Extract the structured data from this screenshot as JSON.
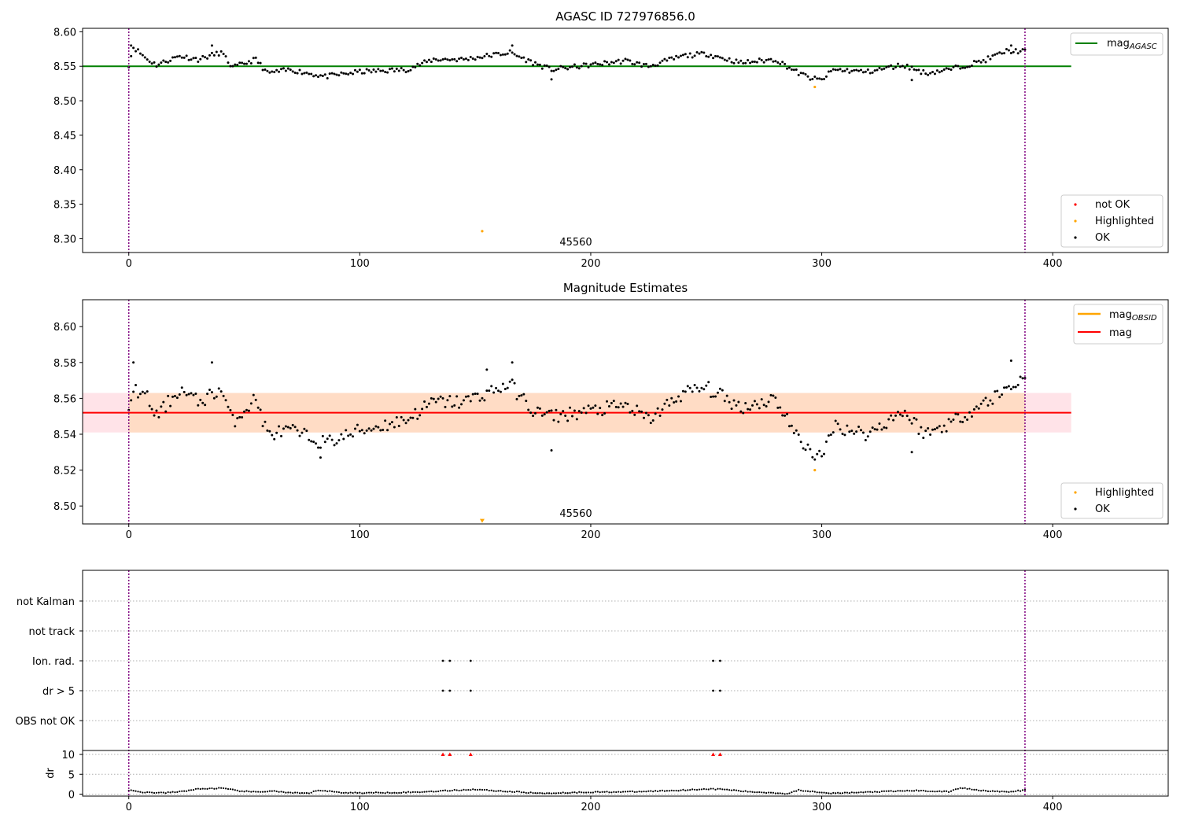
{
  "figure": {
    "obs_marker_label": "45560",
    "obs_marker_x": 193
  },
  "chart_data": [
    {
      "type": "scatter",
      "title": "AGASC ID 727976856.0",
      "xlim": [
        -20,
        450
      ],
      "ylim": [
        8.28,
        8.605
      ],
      "x_ticks": [
        0,
        100,
        200,
        300,
        400
      ],
      "y_ticks": [
        "8.60",
        "8.55",
        "8.50",
        "8.45",
        "8.40",
        "8.35",
        "8.30"
      ],
      "vlines": [
        0,
        388
      ],
      "hline": {
        "label": "mag_AGASC",
        "value": 8.55,
        "x_range": [
          -20,
          408
        ],
        "color": "#008000"
      },
      "legend_top": [
        {
          "label": "mag",
          "sub": "AGASC",
          "color": "#008000"
        }
      ],
      "legend_bottom": [
        {
          "label": "not OK",
          "color": "#ff0000"
        },
        {
          "label": "Highlighted",
          "color": "#ffa500"
        },
        {
          "label": "OK",
          "color": "#000000"
        }
      ],
      "highlighted_points": [
        [
          297,
          8.52
        ],
        [
          153,
          8.311
        ]
      ],
      "series": [
        {
          "name": "OK",
          "color": "#000000",
          "x_start": 0,
          "x_end": 388,
          "count": 389,
          "anchors": [
            [
              0,
              8.552
            ],
            [
              2,
              8.578
            ],
            [
              8,
              8.56
            ],
            [
              12,
              8.552
            ],
            [
              22,
              8.565
            ],
            [
              30,
              8.56
            ],
            [
              40,
              8.57
            ],
            [
              45,
              8.548
            ],
            [
              55,
              8.56
            ],
            [
              60,
              8.54
            ],
            [
              70,
              8.545
            ],
            [
              85,
              8.535
            ],
            [
              100,
              8.542
            ],
            [
              120,
              8.545
            ],
            [
              132,
              8.56
            ],
            [
              145,
              8.56
            ],
            [
              155,
              8.565
            ],
            [
              165,
              8.57
            ],
            [
              175,
              8.555
            ],
            [
              183,
              8.545
            ],
            [
              200,
              8.552
            ],
            [
              215,
              8.558
            ],
            [
              225,
              8.55
            ],
            [
              240,
              8.565
            ],
            [
              250,
              8.568
            ],
            [
              265,
              8.555
            ],
            [
              280,
              8.56
            ],
            [
              290,
              8.54
            ],
            [
              296,
              8.532
            ],
            [
              300,
              8.53
            ],
            [
              305,
              8.545
            ],
            [
              320,
              8.542
            ],
            [
              335,
              8.552
            ],
            [
              345,
              8.54
            ],
            [
              355,
              8.545
            ],
            [
              370,
              8.558
            ],
            [
              380,
              8.572
            ],
            [
              388,
              8.572
            ]
          ],
          "outliers": [
            [
              1,
              8.58
            ],
            [
              36,
              8.58
            ],
            [
              183,
              8.531
            ],
            [
              339,
              8.53
            ],
            [
              166,
              8.58
            ],
            [
              382,
              8.58
            ]
          ]
        }
      ]
    },
    {
      "type": "scatter",
      "title": "Magnitude Estimates",
      "xlim": [
        -20,
        450
      ],
      "ylim": [
        8.49,
        8.615
      ],
      "x_ticks": [
        0,
        100,
        200,
        300,
        400
      ],
      "y_ticks": [
        "8.60",
        "8.58",
        "8.56",
        "8.54",
        "8.52",
        "8.50"
      ],
      "vlines": [
        0,
        388
      ],
      "band": {
        "y0": 8.541,
        "y1": 8.563,
        "x_range": [
          -20,
          408
        ],
        "outer_color": "#ffc0cb",
        "inner_color": "#ffdab9",
        "inner_x_range": [
          0,
          388
        ]
      },
      "hline": {
        "label": "mag",
        "value": 8.552,
        "x_range": [
          -20,
          408
        ],
        "color": "#ff0000"
      },
      "legend_top": [
        {
          "label": "mag",
          "sub": "OBSID",
          "color": "#ffa500"
        },
        {
          "label": "mag",
          "sub": "",
          "color": "#ff0000"
        }
      ],
      "legend_bottom": [
        {
          "label": "Highlighted",
          "color": "#ffa500"
        },
        {
          "label": "OK",
          "color": "#000000"
        }
      ],
      "highlighted_points": [
        [
          297,
          8.52
        ]
      ],
      "highlight_arrow": {
        "x": 153,
        "y": 8.4915
      },
      "series": [
        {
          "name": "OK",
          "color": "#000000",
          "x_start": 0,
          "x_end": 388,
          "count": 389,
          "anchors": [
            [
              0,
              8.55
            ],
            [
              2,
              8.566
            ],
            [
              8,
              8.56
            ],
            [
              12,
              8.55
            ],
            [
              22,
              8.565
            ],
            [
              30,
              8.558
            ],
            [
              40,
              8.565
            ],
            [
              45,
              8.547
            ],
            [
              55,
              8.56
            ],
            [
              60,
              8.54
            ],
            [
              70,
              8.542
            ],
            [
              85,
              8.535
            ],
            [
              100,
              8.542
            ],
            [
              120,
              8.548
            ],
            [
              132,
              8.558
            ],
            [
              145,
              8.558
            ],
            [
              155,
              8.563
            ],
            [
              165,
              8.568
            ],
            [
              175,
              8.553
            ],
            [
              183,
              8.55
            ],
            [
              200,
              8.553
            ],
            [
              215,
              8.556
            ],
            [
              225,
              8.548
            ],
            [
              240,
              8.563
            ],
            [
              250,
              8.566
            ],
            [
              265,
              8.555
            ],
            [
              280,
              8.56
            ],
            [
              290,
              8.537
            ],
            [
              296,
              8.53
            ],
            [
              300,
              8.526
            ],
            [
              305,
              8.545
            ],
            [
              320,
              8.54
            ],
            [
              335,
              8.553
            ],
            [
              345,
              8.54
            ],
            [
              355,
              8.546
            ],
            [
              370,
              8.557
            ],
            [
              380,
              8.565
            ],
            [
              388,
              8.572
            ]
          ],
          "outliers": [
            [
              2,
              8.58
            ],
            [
              36,
              8.58
            ],
            [
              183,
              8.531
            ],
            [
              339,
              8.53
            ],
            [
              166,
              8.58
            ],
            [
              382,
              8.581
            ],
            [
              155,
              8.576
            ],
            [
              83,
              8.527
            ]
          ]
        }
      ]
    },
    {
      "type": "scatter",
      "title": "",
      "xlim": [
        -20,
        450
      ],
      "x_ticks": [
        0,
        100,
        200,
        300,
        400
      ],
      "vlines": [
        0,
        388
      ],
      "flag_rows": [
        "not Kalman",
        "not track",
        "Ion. rad.",
        "dr > 5",
        "OBS not OK"
      ],
      "flag_points": {
        "Ion. rad.": [
          136,
          139,
          148,
          253,
          256
        ],
        "dr > 5": [
          136,
          139,
          148,
          253,
          256
        ]
      },
      "dr_ylabel": "dr",
      "dr_ylim": [
        -0.5,
        11
      ],
      "dr_ticks": [
        0,
        5,
        10
      ],
      "dr_clipped": [
        136,
        139,
        148,
        253,
        256
      ],
      "dr_series": {
        "x_start": 0,
        "x_end": 388,
        "count": 389,
        "anchors": [
          [
            0,
            1.0
          ],
          [
            5,
            0.5
          ],
          [
            15,
            0.3
          ],
          [
            22,
            0.6
          ],
          [
            30,
            1.3
          ],
          [
            40,
            1.5
          ],
          [
            48,
            0.8
          ],
          [
            55,
            0.5
          ],
          [
            62,
            0.8
          ],
          [
            70,
            0.3
          ],
          [
            78,
            0.2
          ],
          [
            82,
            1.0
          ],
          [
            92,
            0.4
          ],
          [
            100,
            0.3
          ],
          [
            115,
            0.4
          ],
          [
            125,
            0.5
          ],
          [
            135,
            0.8
          ],
          [
            150,
            1.2
          ],
          [
            160,
            0.8
          ],
          [
            170,
            0.5
          ],
          [
            178,
            0.2
          ],
          [
            200,
            0.5
          ],
          [
            220,
            0.6
          ],
          [
            240,
            1.0
          ],
          [
            250,
            1.3
          ],
          [
            258,
            1.2
          ],
          [
            268,
            0.6
          ],
          [
            280,
            0.3
          ],
          [
            285,
            0.1
          ],
          [
            290,
            1.0
          ],
          [
            305,
            0.2
          ],
          [
            320,
            0.5
          ],
          [
            340,
            0.9
          ],
          [
            355,
            0.6
          ],
          [
            360,
            1.6
          ],
          [
            368,
            1.0
          ],
          [
            380,
            0.5
          ],
          [
            388,
            1.0
          ]
        ]
      }
    }
  ]
}
